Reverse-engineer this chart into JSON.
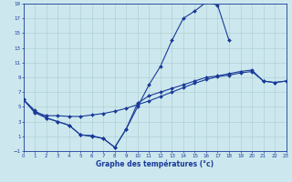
{
  "background_color": "#cce8ee",
  "grid_color": "#aacccc",
  "line_color": "#1a3a99",
  "xlabel": "Graphe des températures (°c)",
  "xlim": [
    0,
    23
  ],
  "ylim": [
    -1,
    19
  ],
  "xticks": [
    0,
    1,
    2,
    3,
    4,
    5,
    6,
    7,
    8,
    9,
    10,
    11,
    12,
    13,
    14,
    15,
    16,
    17,
    18,
    19,
    20,
    21,
    22,
    23
  ],
  "yticks": [
    -1,
    1,
    3,
    5,
    7,
    9,
    11,
    13,
    15,
    17,
    19
  ],
  "line1_x": [
    0,
    1,
    2,
    3,
    4,
    5,
    6,
    7,
    8,
    9,
    10,
    11,
    12,
    13,
    14,
    15,
    16,
    17,
    18
  ],
  "line1_y": [
    6.0,
    4.5,
    3.5,
    3.0,
    2.5,
    1.2,
    1.1,
    0.7,
    -0.5,
    2.0,
    5.0,
    8.0,
    10.5,
    14.0,
    17.0,
    18.0,
    19.2,
    18.8,
    14.0
  ],
  "line2_x": [
    0,
    1,
    2,
    3,
    4,
    5,
    6,
    7,
    8,
    9,
    10,
    11,
    12,
    13,
    14,
    15,
    16,
    17,
    18,
    19,
    20,
    21,
    22,
    23
  ],
  "line2_y": [
    6.0,
    4.3,
    3.8,
    3.8,
    3.7,
    3.7,
    3.9,
    4.1,
    4.4,
    4.8,
    5.3,
    5.8,
    6.4,
    7.0,
    7.6,
    8.2,
    8.7,
    9.1,
    9.3,
    9.6,
    9.8,
    8.5,
    8.3,
    8.5
  ],
  "line3_x": [
    0,
    1,
    2,
    3,
    4,
    5,
    6,
    7,
    8,
    9,
    10,
    11,
    12,
    13,
    14,
    15,
    16,
    17,
    18,
    19,
    20,
    21,
    22,
    23
  ],
  "line3_y": [
    6.0,
    4.2,
    3.5,
    3.0,
    2.5,
    1.2,
    1.0,
    0.7,
    -0.5,
    2.0,
    5.5,
    6.5,
    7.0,
    7.5,
    8.0,
    8.5,
    9.0,
    9.2,
    9.5,
    9.8,
    10.0,
    8.5,
    8.3,
    8.5
  ]
}
